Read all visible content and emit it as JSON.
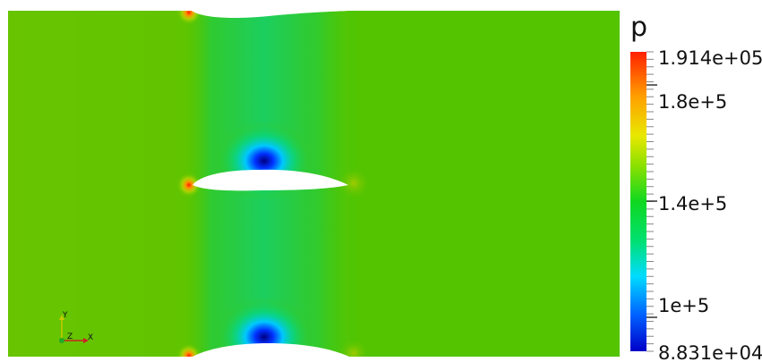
{
  "scalar_bar": {
    "title": "p",
    "max_label": "1.914e+05",
    "min_label": "8.831e+04",
    "tick_labels": [
      "1.8e+5",
      "1.4e+5",
      "1e+5"
    ],
    "range": [
      88310,
      191400
    ],
    "tick_values": [
      180000,
      140000,
      100000
    ]
  },
  "axes_triad": {
    "x_label": "X",
    "y_label": "Y",
    "z_label": "Z",
    "x_color": "#cc2222",
    "y_color": "#c8c800",
    "z_color": "#22aa22"
  },
  "colors": {
    "background": "#ffffff",
    "field_base": "#54c400"
  }
}
